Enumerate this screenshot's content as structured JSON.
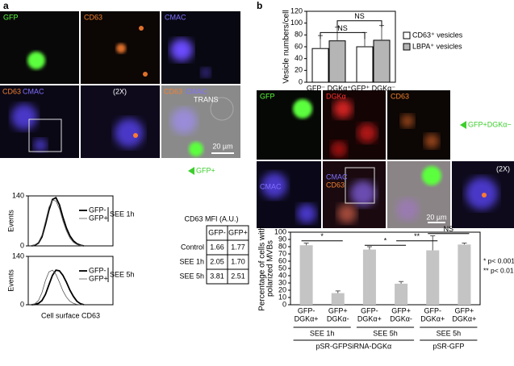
{
  "panel_labels": [
    "a",
    "b"
  ],
  "images_a": {
    "labels": [
      "GFP",
      "CD63",
      "CMAC",
      "CD63",
      "CMAC",
      "(2X)",
      "CD63",
      "CMAC",
      "TRANS",
      "20 µm"
    ],
    "arrow_label": "GFP+"
  },
  "images_b": {
    "labels": [
      "GFP",
      "DGKα",
      "CD63",
      "CMAC",
      "CMAC",
      "CD63",
      "20 µm",
      "(2X)"
    ],
    "arrow_label": "GFP+DGKα−"
  },
  "table": {
    "title": "CD63 MFI (A.U.)",
    "header": [
      "GFP-",
      "GFP+"
    ],
    "rows": [
      [
        "Control",
        "1.66",
        "1.77"
      ],
      [
        "SEE 1h",
        "2.05",
        "1.70"
      ],
      [
        "SEE 5h",
        "3.81",
        "2.51"
      ]
    ]
  },
  "chart_data": [
    {
      "type": "histogram-line",
      "ylabel": "Events",
      "ylim": [
        0,
        140
      ],
      "yticks": [
        0,
        140
      ],
      "condition": "SEE 1h",
      "series": [
        {
          "name": "GFP-",
          "color": "#000000",
          "values": [
            0,
            2,
            8,
            25,
            60,
            100,
            130,
            135,
            115,
            80,
            50,
            28,
            14,
            6,
            2,
            0
          ]
        },
        {
          "name": "GFP+",
          "color": "#555555",
          "values": [
            0,
            3,
            10,
            30,
            68,
            108,
            128,
            126,
            104,
            70,
            42,
            22,
            10,
            4,
            1,
            0
          ]
        }
      ]
    },
    {
      "type": "histogram-line",
      "ylabel": "Events",
      "xlabel": "Cell surface CD63",
      "ylim": [
        0,
        140
      ],
      "yticks": [
        0,
        140
      ],
      "condition": "SEE 5h",
      "series": [
        {
          "name": "GFP-",
          "color": "#000000",
          "values": [
            0,
            1,
            4,
            12,
            30,
            58,
            85,
            100,
            98,
            85,
            65,
            42,
            24,
            10,
            3,
            0
          ]
        },
        {
          "name": "GFP+",
          "color": "#555555",
          "values": [
            0,
            3,
            12,
            35,
            70,
            95,
            100,
            88,
            65,
            40,
            22,
            10,
            4,
            1,
            0,
            0
          ]
        }
      ]
    },
    {
      "type": "bar",
      "ylabel": [
        "Vesicle numbers/cell"
      ],
      "ylim": [
        0,
        120
      ],
      "yticks": [
        0,
        20,
        40,
        60,
        80,
        100,
        120
      ],
      "categories": [
        [
          "GFP⁻ DGKα⁺"
        ],
        [
          "GFP⁺ DGKα⁻"
        ]
      ],
      "series": [
        {
          "name": "CD63⁺ vesicles",
          "color": "#ffffff",
          "values": [
            57,
            60
          ],
          "errors": [
            22,
            24
          ]
        },
        {
          "name": "LBPA⁺ vesicles",
          "color": "#b5b5b5",
          "values": [
            70,
            71
          ],
          "errors": [
            23,
            25
          ]
        }
      ],
      "significance": [
        "NS",
        "NS"
      ]
    },
    {
      "type": "bar",
      "ylabel": [
        "Percentage of cells with",
        "polarized MVBs"
      ],
      "ylim": [
        0,
        100
      ],
      "yticks": [
        0,
        10,
        20,
        30,
        40,
        50,
        60,
        70,
        80,
        90,
        100
      ],
      "categories": [
        [
          "GFP-",
          "DGKα+"
        ],
        [
          "GFP+",
          "DGKα-"
        ],
        [
          "GFP-",
          "DGKα+"
        ],
        [
          "GFP+",
          "DGKα-"
        ],
        [
          "GFP-",
          "DGKα+"
        ],
        [
          "GFP+",
          "DGKα+"
        ]
      ],
      "series": [
        {
          "color": "#c4c4c4",
          "values": [
            82,
            16,
            76,
            29,
            75,
            83
          ],
          "errors": [
            3,
            3,
            4,
            3,
            20,
            2
          ]
        }
      ],
      "significance": [
        "*",
        "*",
        "**",
        "NS"
      ],
      "groups": [
        "SEE 1h",
        "SEE 5h",
        "SEE 5h"
      ],
      "constructs": [
        "pSR-GFPSiRNA-DGKα",
        "pSR-GFP"
      ],
      "notes": [
        "*  p< 0.001",
        "**  p< 0.01"
      ]
    }
  ]
}
